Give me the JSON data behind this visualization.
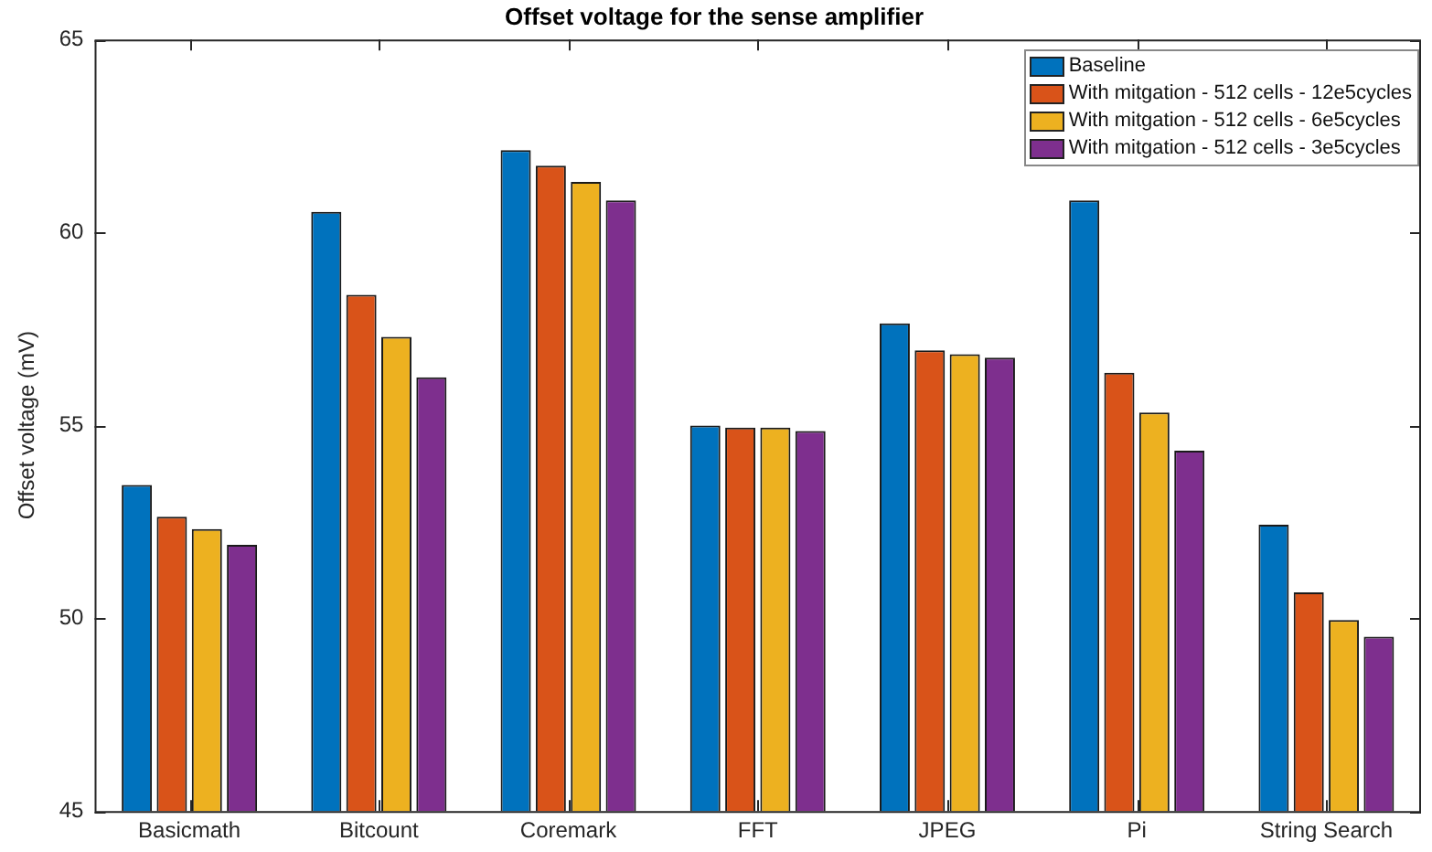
{
  "chart_data": {
    "type": "bar",
    "title": "Offset voltage for the sense amplifier",
    "ylabel": "Offset voltage (mV)",
    "categories": [
      "Basicmath",
      "Bitcount",
      "Coremark",
      "FFT",
      "JPEG",
      "Pi",
      "String Search"
    ],
    "series": [
      {
        "name": "Baseline",
        "color": "#0072bd",
        "values": [
          53.45,
          60.53,
          62.13,
          54.99,
          57.64,
          60.83,
          52.42
        ]
      },
      {
        "name": "With mitgation - 512 cells - 12e5cycles",
        "color": "#d95319",
        "values": [
          52.63,
          58.38,
          61.73,
          54.94,
          56.94,
          56.36,
          50.67
        ]
      },
      {
        "name": "With mitgation - 512 cells - 6e5cycles",
        "color": "#edb120",
        "values": [
          52.31,
          57.29,
          61.31,
          54.94,
          56.84,
          55.33,
          49.95
        ]
      },
      {
        "name": "With mitgation - 512 cells - 3e5cycles",
        "color": "#7e2f8e",
        "values": [
          51.9,
          56.24,
          60.83,
          54.85,
          56.75,
          54.34,
          49.52
        ]
      }
    ],
    "ylim": [
      45,
      65
    ],
    "yticks": [
      45,
      50,
      55,
      60,
      65
    ],
    "grid": false,
    "legend": "top right"
  }
}
